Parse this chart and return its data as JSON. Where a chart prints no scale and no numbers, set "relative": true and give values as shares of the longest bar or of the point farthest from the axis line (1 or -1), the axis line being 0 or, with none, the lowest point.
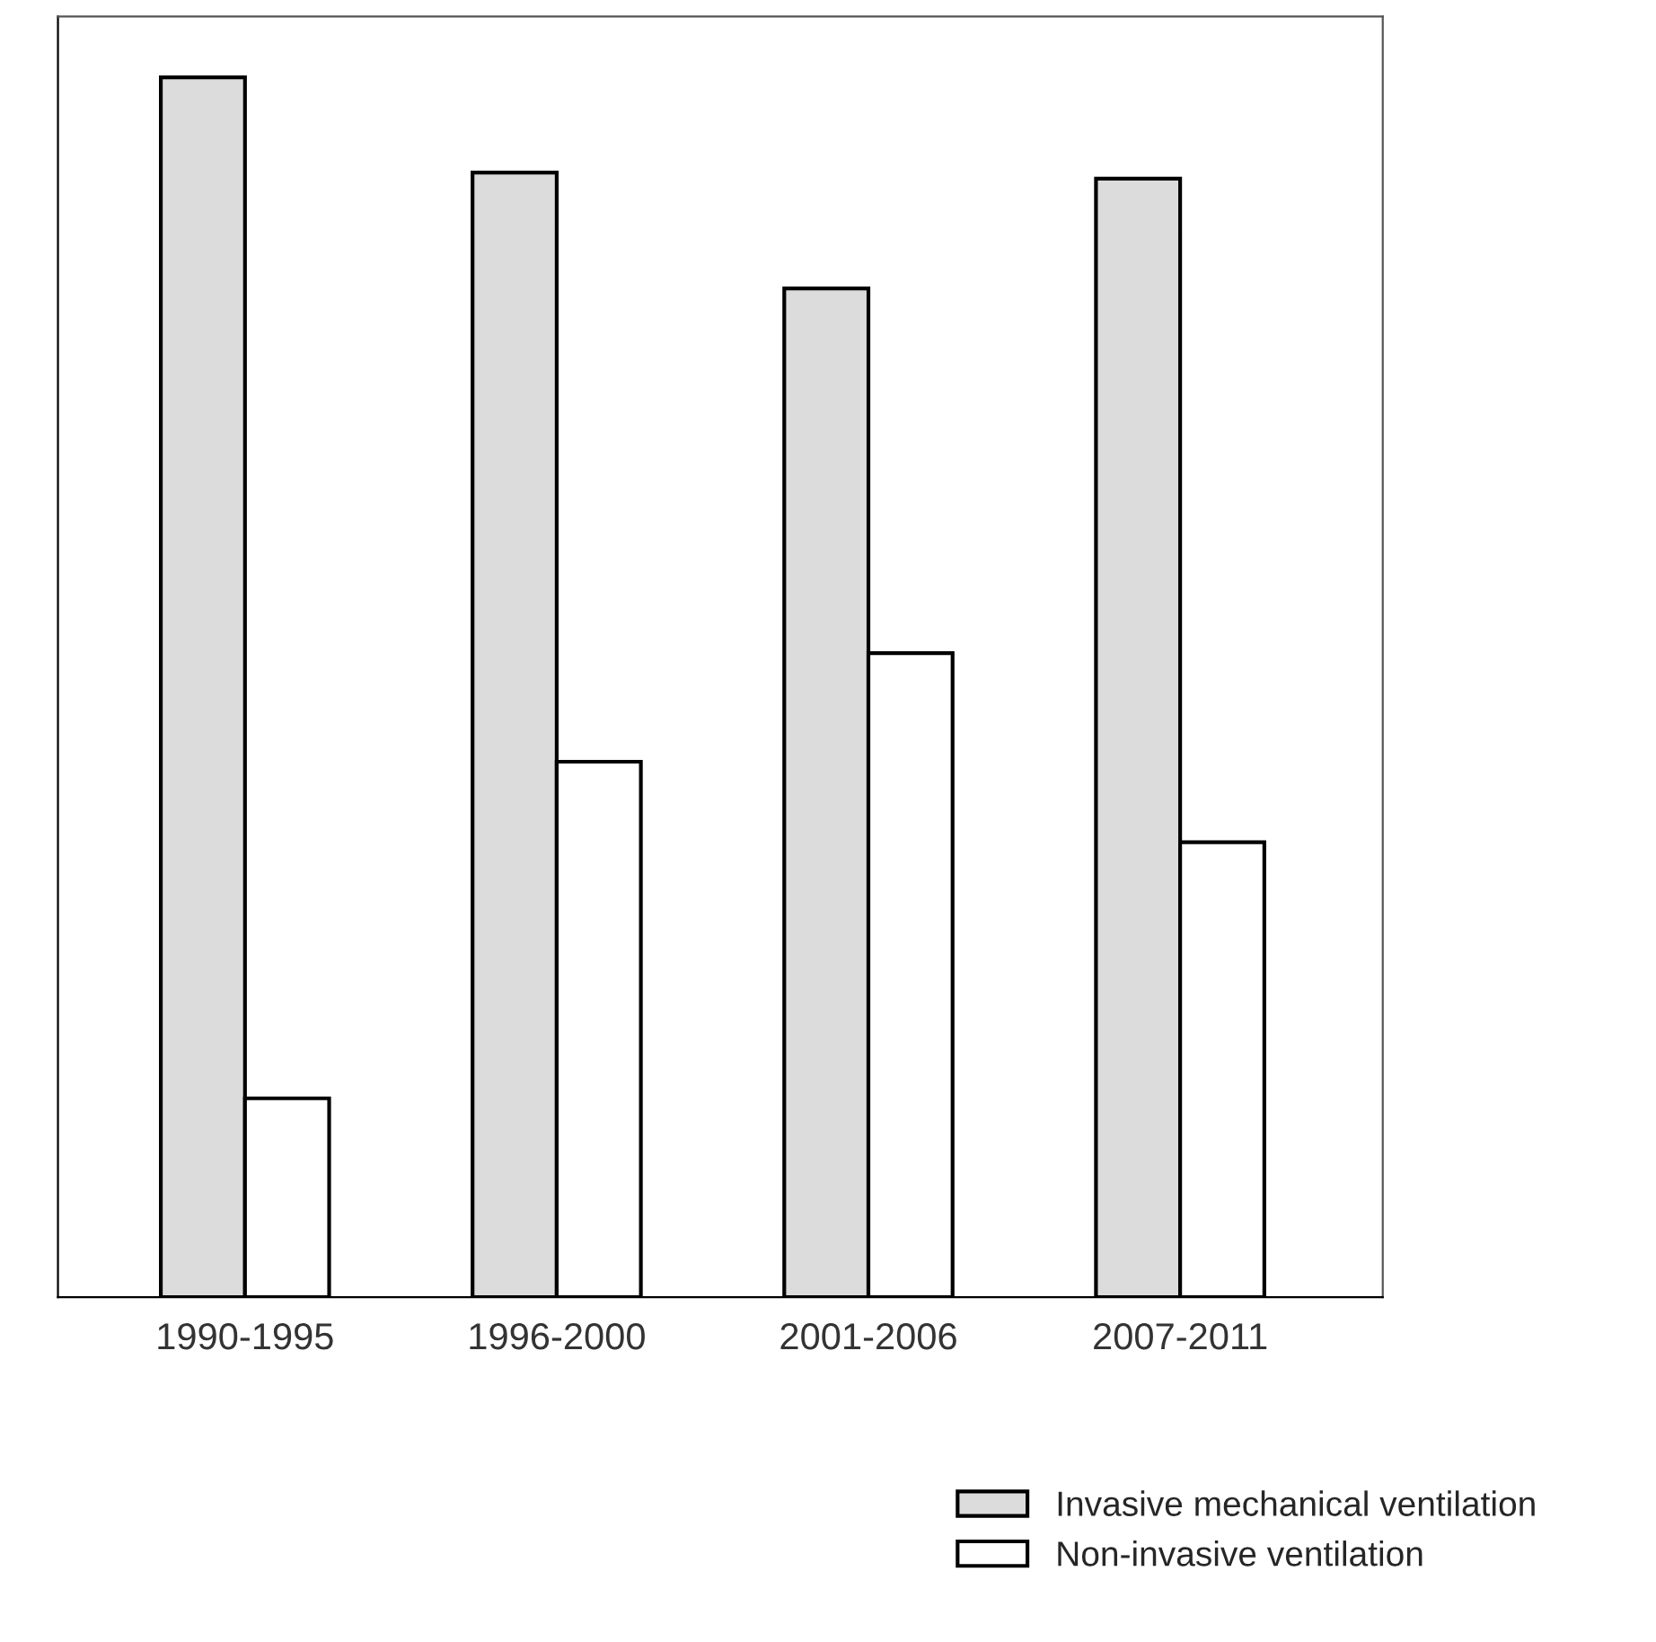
{
  "chart_data": {
    "type": "bar",
    "relative": true,
    "categories": [
      "1990-1995",
      "1996-2000",
      "2001-2006",
      "2007-2011"
    ],
    "series": [
      {
        "name": "Invasive mechanical ventilation",
        "color": "#dcdcdc",
        "values": [
          1,
          0.922,
          0.827,
          0.917
        ]
      },
      {
        "name": "Non-invasive ventilation",
        "color": "#ffffff",
        "values": [
          0.163,
          0.439,
          0.528,
          0.373
        ]
      }
    ],
    "legend": "bottom right",
    "grid": false
  }
}
